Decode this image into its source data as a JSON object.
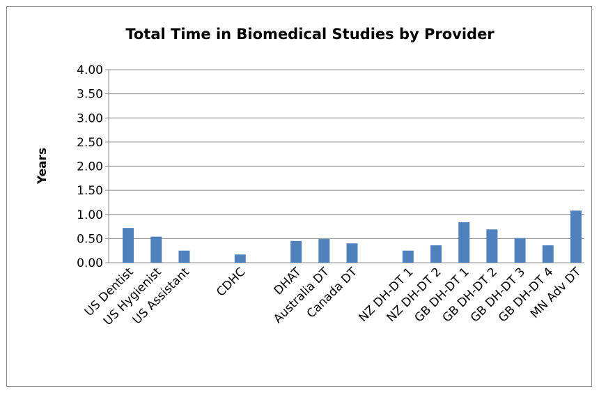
{
  "chart_data": {
    "type": "bar",
    "title": "Total Time in Biomedical Studies by Provider",
    "y_label": "Years",
    "categories": [
      "US Dentist",
      "US Hygienist",
      "US Assistant",
      null,
      "CDHC",
      null,
      "DHAT",
      "Australia DT",
      "Canada DT",
      null,
      "NZ DH-DT 1",
      "NZ DH-DT 2",
      "GB DH-DT 1",
      "GB DH-DT 2",
      "GB DH-DT 3",
      "GB DH-DT 4",
      "MN Adv DT"
    ],
    "values": [
      0.72,
      0.54,
      0.25,
      null,
      0.17,
      null,
      0.45,
      0.49,
      0.4,
      null,
      0.25,
      0.36,
      0.84,
      0.69,
      0.51,
      0.36,
      1.08
    ],
    "color": "#4f81bd",
    "ylim": [
      0,
      4
    ],
    "yticks": [
      {
        "value": 0,
        "label": "0.00"
      },
      {
        "value": 0.5,
        "label": "0.50"
      },
      {
        "value": 1,
        "label": "1.00"
      },
      {
        "value": 1.5,
        "label": "1.50"
      },
      {
        "value": 2,
        "label": "2.00"
      },
      {
        "value": 2.5,
        "label": "2.50"
      },
      {
        "value": 3,
        "label": "3.00"
      },
      {
        "value": 3.5,
        "label": "3.50"
      },
      {
        "value": 4,
        "label": "4.00"
      }
    ],
    "grid": true
  }
}
